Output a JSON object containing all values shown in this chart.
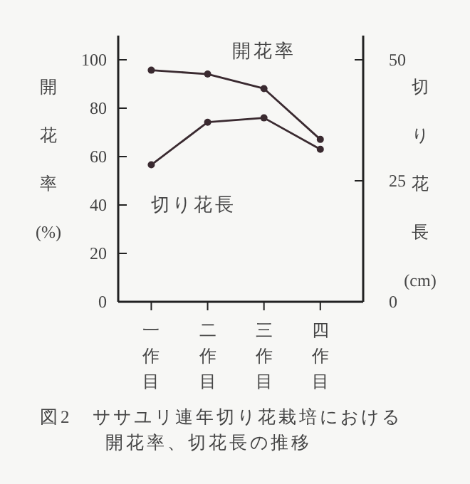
{
  "chart_data": {
    "type": "line",
    "title": "図2　ササユリ連年切り花栽培における開花率、切花長の推移",
    "categories": [
      "一作目",
      "二作目",
      "三作目",
      "四作目"
    ],
    "ylabel": "開花率(%)",
    "y2label": "切り花長(cm)",
    "ylim": [
      0,
      110
    ],
    "yticks": [
      0,
      20,
      40,
      60,
      80,
      100
    ],
    "y2lim": [
      0,
      55
    ],
    "y2ticks": [
      0,
      25,
      50
    ],
    "marker": "circle",
    "grid": false,
    "series": [
      {
        "name": "開花率",
        "color": "#3a2a30",
        "values": [
          95.7,
          94.1,
          88.1,
          67.1
        ]
      },
      {
        "name": "切り花長",
        "color": "#3a2a30",
        "axis": "y2",
        "values": [
          28.3,
          37.1,
          38.0,
          31.5
        ]
      }
    ]
  }
}
